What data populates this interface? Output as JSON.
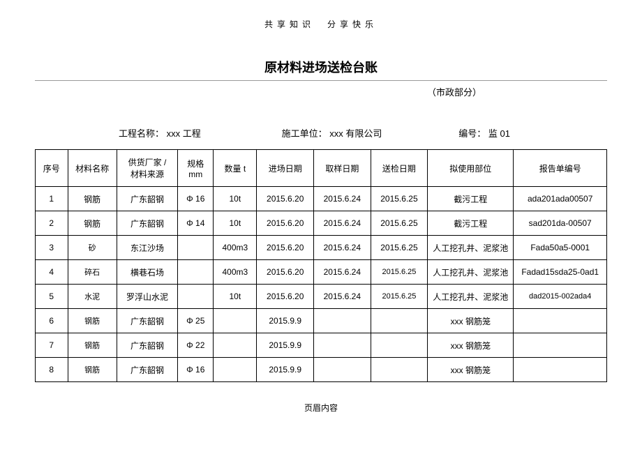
{
  "header_text": "共享知识　分享快乐",
  "title": "原材料进场送检台账",
  "subtitle": "（市政部分）",
  "info": {
    "project_label": "工程名称：",
    "project_value": "xxx 工程",
    "company_label": "施工单位：",
    "company_value": "xxx 有限公司",
    "number_label": "编号：",
    "number_value": "监 01"
  },
  "table": {
    "columns": [
      "序号",
      "材料名称",
      "供货厂家 /\n材料来源",
      "规格\nmm",
      "数量 t",
      "进场日期",
      "取样日期",
      "送检日期",
      "拟使用部位",
      "报告单编号"
    ],
    "rows": [
      [
        "1",
        "钢筋",
        "广东韶钢",
        "Φ 16",
        "10t",
        "2015.6.20",
        "2015.6.24",
        "2015.6.25",
        "截污工程",
        "ada201ada00507"
      ],
      [
        "2",
        "钢筋",
        "广东韶钢",
        "Φ 14",
        "10t",
        "2015.6.20",
        "2015.6.24",
        "2015.6.25",
        "截污工程",
        "sad201da-00507"
      ],
      [
        "3",
        "砂",
        "东江沙场",
        "",
        "400m3",
        "2015.6.20",
        "2015.6.24",
        "2015.6.25",
        "人工挖孔井、泥浆池",
        "Fada50a5-0001"
      ],
      [
        "4",
        "碎石",
        "横巷石场",
        "",
        "400m3",
        "2015.6.20",
        "2015.6.24",
        "2015.6.25",
        "人工挖孔井、泥浆池",
        "Fadad15sda25-0ad1"
      ],
      [
        "5",
        "水泥",
        "罗浮山水泥",
        "",
        "10t",
        "2015.6.20",
        "2015.6.24",
        "2015.6.25",
        "人工挖孔井、泥浆池",
        "dad2015-002ada4"
      ],
      [
        "6",
        "钢筋",
        "广东韶钢",
        "Φ 25",
        "",
        "2015.9.9",
        "",
        "",
        "xxx 钢筋笼",
        ""
      ],
      [
        "7",
        "钢筋",
        "广东韶钢",
        "Φ 22",
        "",
        "2015.9.9",
        "",
        "",
        "xxx 钢筋笼",
        ""
      ],
      [
        "8",
        "钢筋",
        "广东韶钢",
        "Φ 16",
        "",
        "2015.9.9",
        "",
        "",
        "xxx 钢筋笼",
        ""
      ]
    ],
    "small_rows": [
      3,
      4,
      5,
      6,
      7,
      8
    ],
    "small_date7_rows": [
      4,
      5
    ],
    "small_report_rows": [
      5
    ]
  },
  "footer_text": "页眉内容"
}
